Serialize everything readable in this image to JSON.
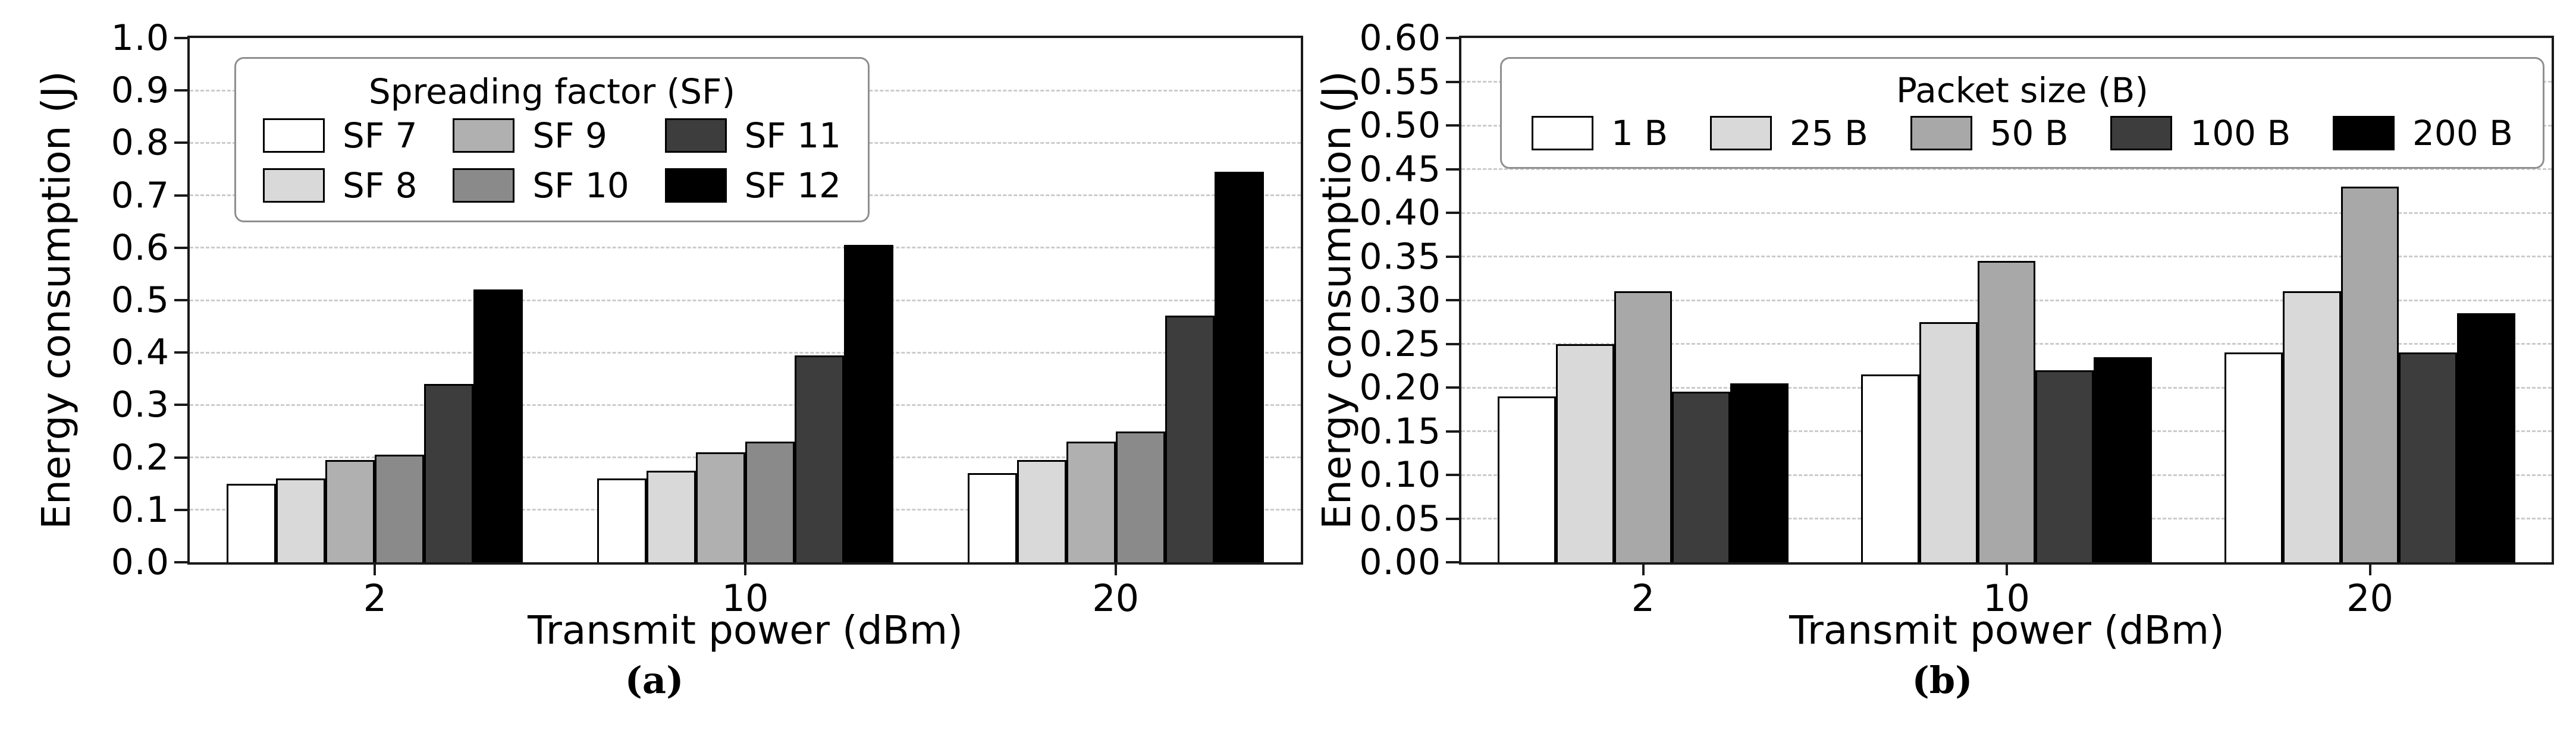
{
  "figure": {
    "background": "#ffffff",
    "spine_color": "#1a1a1a",
    "grid_color": "#cccccc",
    "bar_edge_color": "#000000"
  },
  "chart_data": [
    {
      "id": "a",
      "type": "bar",
      "caption": "(a)",
      "xlabel": "Transmit power (dBm)",
      "ylabel": "Energy consumption (J)",
      "categories": [
        "2",
        "10",
        "20"
      ],
      "ylim": [
        0,
        1.0
      ],
      "ytick_step": 0.1,
      "yticks": [
        "0.0",
        "0.1",
        "0.2",
        "0.3",
        "0.4",
        "0.5",
        "0.6",
        "0.7",
        "0.8",
        "0.9",
        "1.0"
      ],
      "grid": "horizontal-dashed",
      "legend_title": "Spreading factor (SF)",
      "legend_position": "upper-left",
      "legend_rows": 2,
      "series": [
        {
          "name": "SF 7",
          "color": "#ffffff",
          "values": [
            0.15,
            0.16,
            0.17
          ]
        },
        {
          "name": "SF 8",
          "color": "#d9d9d9",
          "values": [
            0.16,
            0.175,
            0.195
          ]
        },
        {
          "name": "SF 9",
          "color": "#b0b0b0",
          "values": [
            0.195,
            0.21,
            0.23
          ]
        },
        {
          "name": "SF 10",
          "color": "#8a8a8a",
          "values": [
            0.205,
            0.23,
            0.25
          ]
        },
        {
          "name": "SF 11",
          "color": "#3d3d3d",
          "values": [
            0.34,
            0.395,
            0.47
          ]
        },
        {
          "name": "SF 12",
          "color": "#000000",
          "values": [
            0.52,
            0.605,
            0.745
          ]
        }
      ]
    },
    {
      "id": "b",
      "type": "bar",
      "caption": "(b)",
      "xlabel": "Transmit power (dBm)",
      "ylabel": "Energy consumption (J)",
      "categories": [
        "2",
        "10",
        "20"
      ],
      "ylim": [
        0,
        0.6
      ],
      "ytick_step": 0.05,
      "yticks": [
        "0.00",
        "0.05",
        "0.10",
        "0.15",
        "0.20",
        "0.25",
        "0.30",
        "0.35",
        "0.40",
        "0.45",
        "0.50",
        "0.55",
        "0.60"
      ],
      "grid": "horizontal-dashed",
      "legend_title": "Packet size (B)",
      "legend_position": "upper-center",
      "legend_rows": 1,
      "series": [
        {
          "name": "1 B",
          "color": "#ffffff",
          "values": [
            0.19,
            0.215,
            0.24
          ]
        },
        {
          "name": "25 B",
          "color": "#d9d9d9",
          "values": [
            0.25,
            0.275,
            0.31
          ]
        },
        {
          "name": "50 B",
          "color": "#a8a8a8",
          "values": [
            0.31,
            0.345,
            0.43
          ]
        },
        {
          "name": "100 B",
          "color": "#3d3d3d",
          "values": [
            0.195,
            0.22,
            0.24
          ]
        },
        {
          "name": "200 B",
          "color": "#000000",
          "values": [
            0.205,
            0.235,
            0.285
          ]
        }
      ]
    }
  ]
}
